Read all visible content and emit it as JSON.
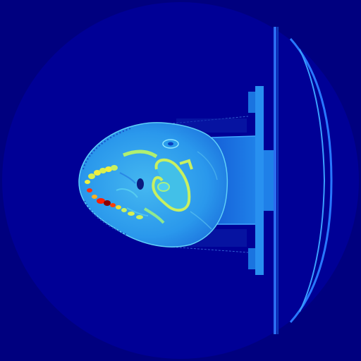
{
  "image": {
    "kind": "axial CT slice, head, jet colormap",
    "colors": {
      "background": "#00007f",
      "field_of_view": "#000099",
      "soft_tissue": "#1f8fe8",
      "soft_tissue_light": "#3fb0f0",
      "bone": "#c8f060",
      "bone_dense": "#f0f030",
      "metal_hot": "#ff2000",
      "metal_core": "#8b0000",
      "table": "#1a74e0",
      "table_edge": "#40a8ff"
    }
  }
}
